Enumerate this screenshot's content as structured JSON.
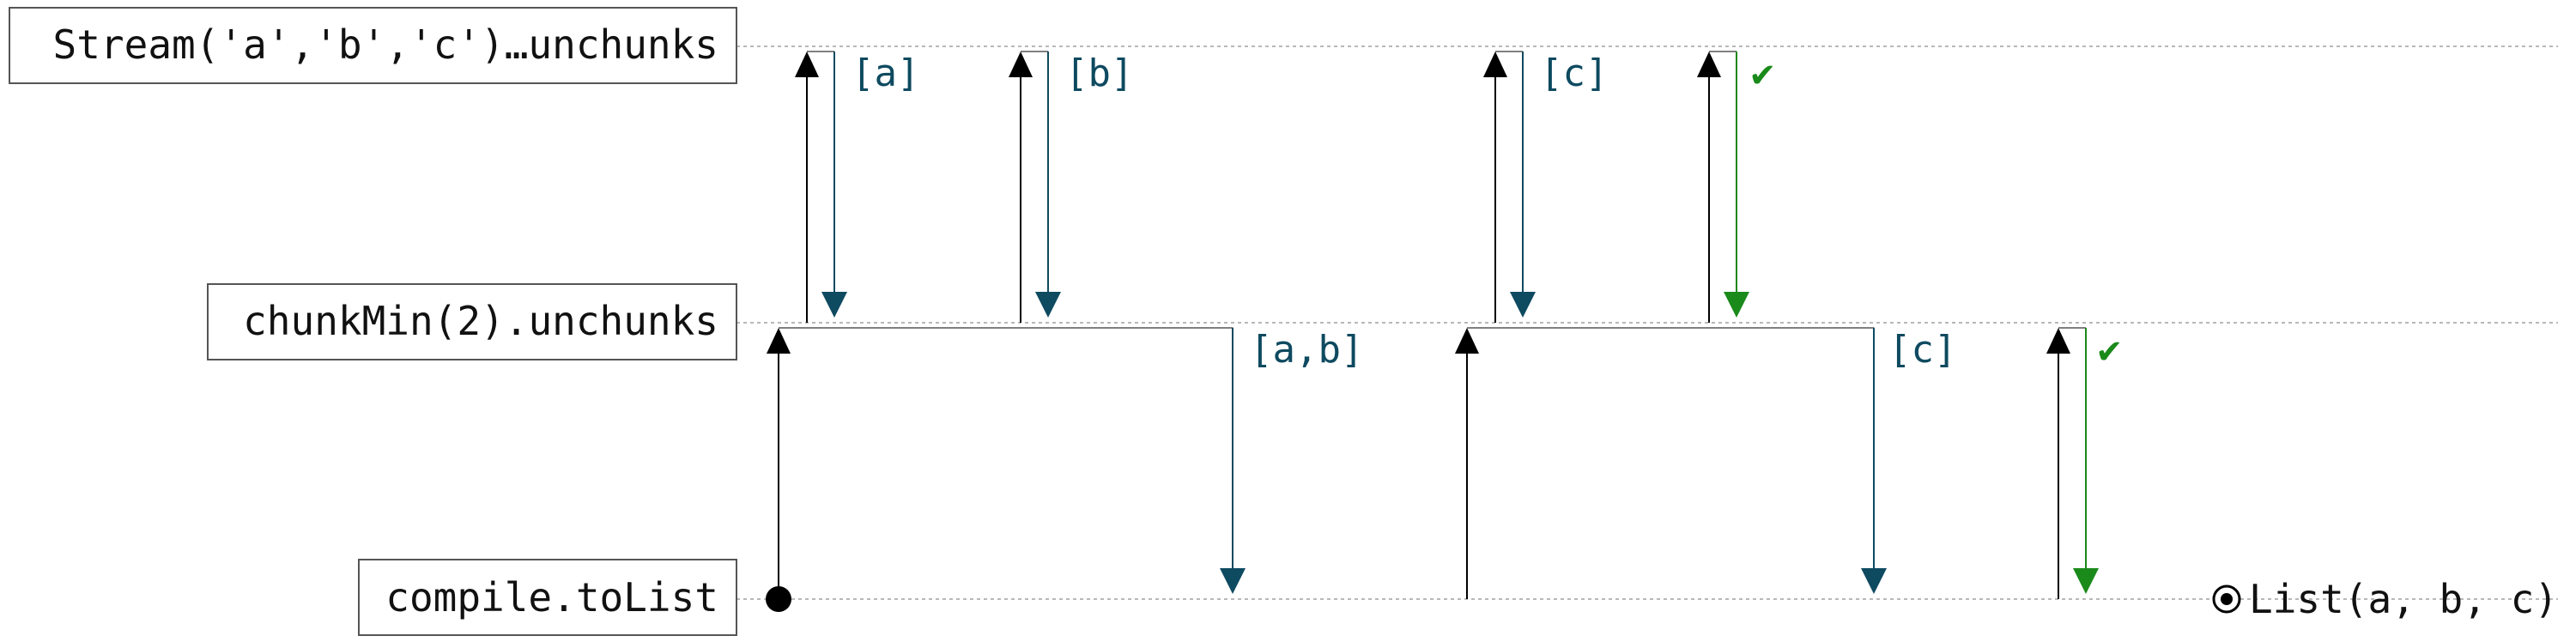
{
  "lanes": [
    {
      "name": "Stream('a','b','c')…unchunks"
    },
    {
      "name": "chunkMin(2).unchunks"
    },
    {
      "name": "compile.toList"
    }
  ],
  "messages": [
    {
      "label": "[a]",
      "kind": "data"
    },
    {
      "label": "[b]",
      "kind": "data"
    },
    {
      "label": "[c]",
      "kind": "data"
    },
    {
      "label": "✔",
      "kind": "done"
    },
    {
      "label": "[a,b]",
      "kind": "data"
    },
    {
      "label": "[c]",
      "kind": "data"
    },
    {
      "label": "✔",
      "kind": "done"
    }
  ],
  "result": {
    "label": "List(a, b, c)"
  },
  "colors": {
    "pull": "#000000",
    "data": "#0e4a60",
    "done": "#1a8a1a",
    "lane_line": "#b8b8b8"
  }
}
